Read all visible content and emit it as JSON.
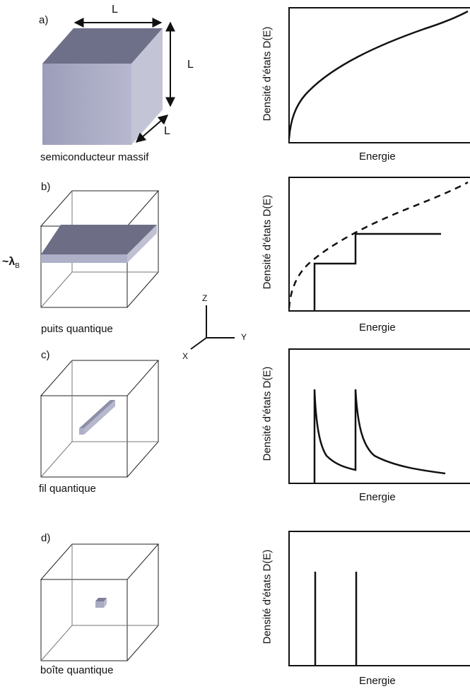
{
  "panels": [
    {
      "letter": "a)",
      "caption": "semiconducteur massif",
      "plot": {
        "ylabel": "Densité d'états D(E)",
        "xlabel": "Energie"
      }
    },
    {
      "letter": "b)",
      "caption": "puits quantique",
      "plot": {
        "ylabel": "Densité d'états D(E)",
        "xlabel": "Energie"
      }
    },
    {
      "letter": "c)",
      "caption": "fil quantique",
      "plot": {
        "ylabel": "Densité d'états D(E)",
        "xlabel": "Energie"
      }
    },
    {
      "letter": "d)",
      "caption": "boîte quantique",
      "plot": {
        "ylabel": "Densité d'états D(E)",
        "xlabel": "Energie"
      }
    }
  ],
  "dimensions": {
    "width": "L",
    "height": "L",
    "depth": "L"
  },
  "wavelength": {
    "tilde": "~",
    "symbol": "λ",
    "subscript": "B"
  },
  "axes": {
    "z": "Z",
    "y": "Y",
    "x": "X"
  },
  "colors": {
    "slab_top": "#6d6e86",
    "slab_side": "#aeb0c8",
    "cube_front": "#a8a9c4",
    "cube_top": "#6e6f88",
    "cube_side": "#c5c6d6"
  }
}
